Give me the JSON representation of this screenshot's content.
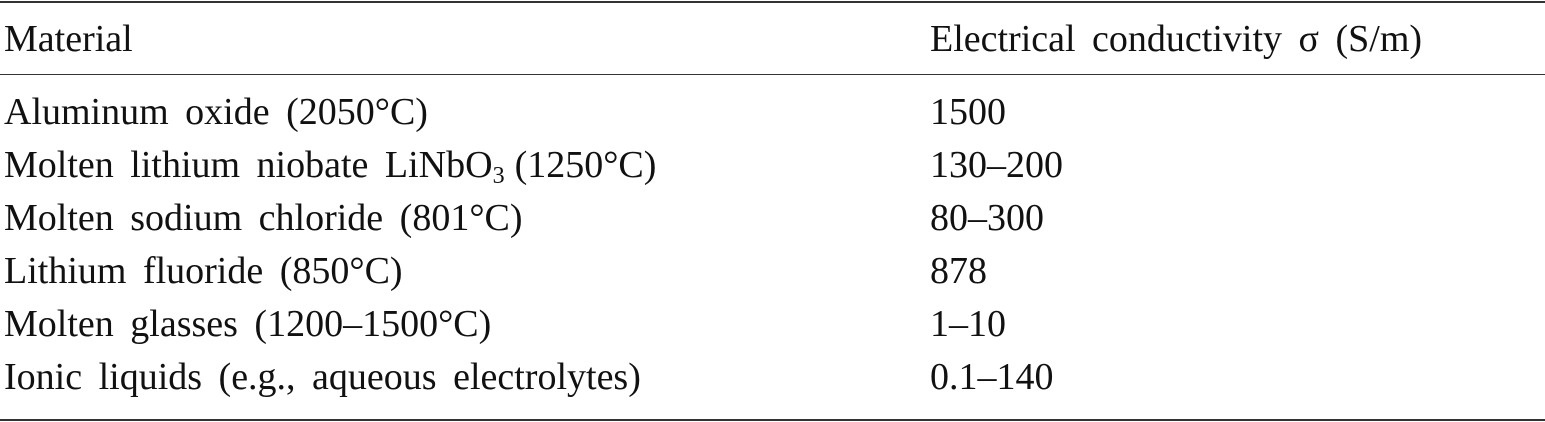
{
  "table": {
    "header": [
      "Material",
      "Electrical conductivity σ (S/m)"
    ],
    "rows": [
      [
        {
          "text": "Aluminum oxide (2050°C)"
        },
        "1500"
      ],
      [
        {
          "text": "Molten lithium niobate LiNbO",
          "sub": "3",
          "after": "(1250°C)"
        },
        "130–200"
      ],
      [
        {
          "text": "Molten sodium chloride (801°C)"
        },
        "80–300"
      ],
      [
        {
          "text": "Lithium fluoride (850°C)"
        },
        "878"
      ],
      [
        {
          "text": "Molten glasses (1200–1500°C)"
        },
        "1–10"
      ],
      [
        {
          "text": "Ionic liquids (e.g., aqueous electrolytes)"
        },
        "0.1–140"
      ]
    ]
  }
}
